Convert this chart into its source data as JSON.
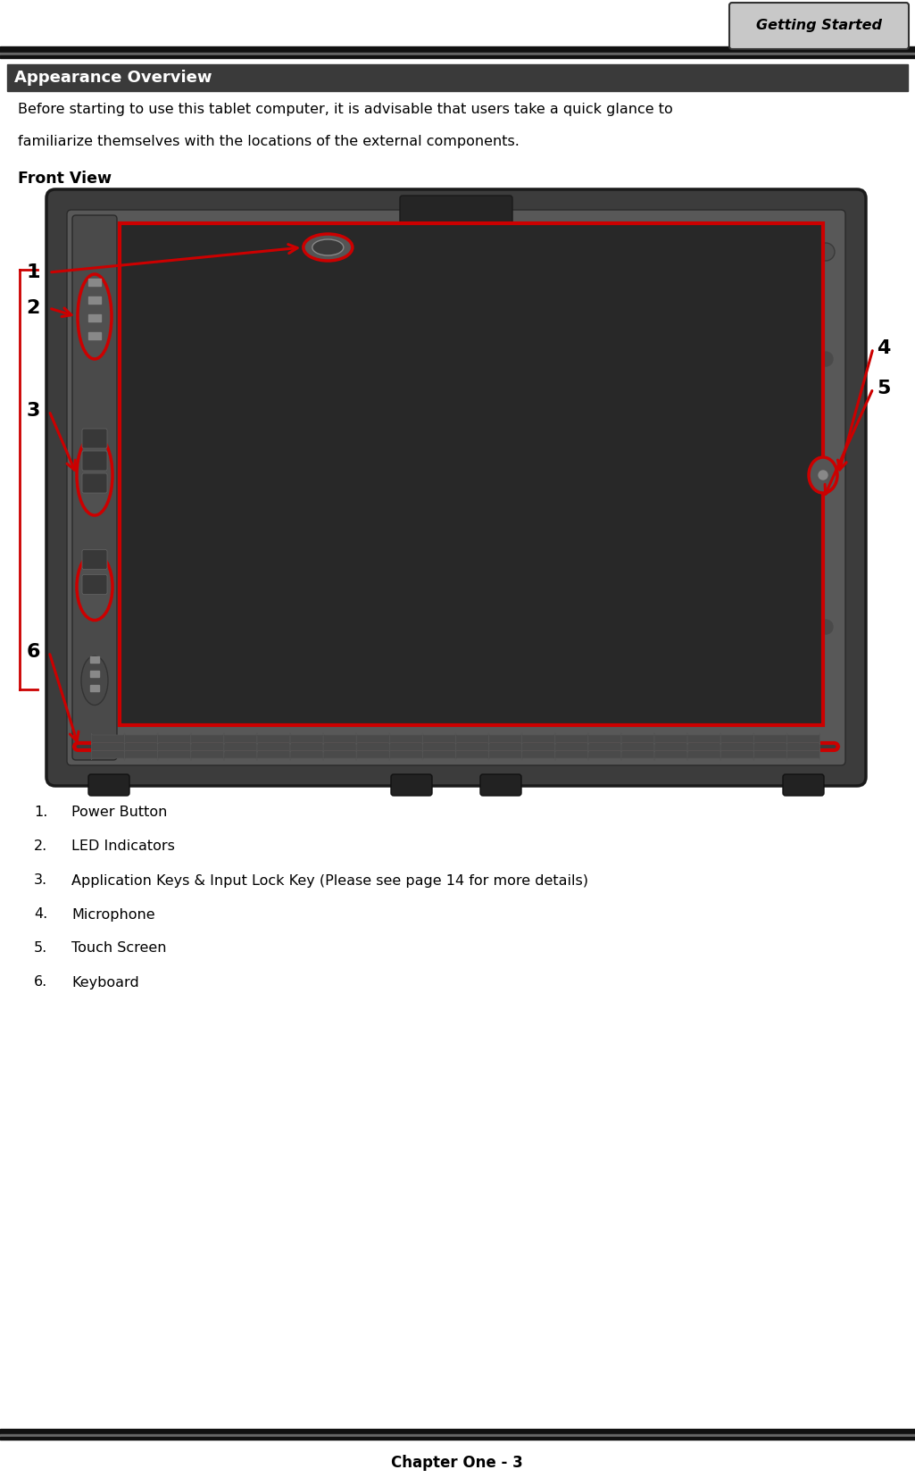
{
  "page_bg": "#ffffff",
  "header_tab_text": "Getting Started",
  "header_tab_bg": "#c8c8c8",
  "header_line1_color": "#1a1a1a",
  "section_title": "Appearance Overview",
  "section_title_bg": "#3a3a3a",
  "section_title_color": "#ffffff",
  "body_text_line1": "Before starting to use this tablet computer, it is advisable that users take a quick glance to",
  "body_text_line2": "familiarize themselves with the locations of the external components.",
  "front_view_label": "Front View",
  "list_items": [
    [
      "1.",
      "Power Button"
    ],
    [
      "2.",
      "LED Indicators"
    ],
    [
      "3.",
      "Application Keys & Input Lock Key (Please see page 14 for more details)"
    ],
    [
      "4.",
      "Microphone"
    ],
    [
      "5.",
      "Touch Screen"
    ],
    [
      "6.",
      "Keyboard"
    ]
  ],
  "footer_text": "Chapter One - 3",
  "callout_color": "#cc0000",
  "device_body_color": "#606060",
  "device_inner_color": "#707070",
  "device_screen_color": "#282828",
  "device_keyboard_color": "#3a3a3a",
  "device_dark_color": "#1a1a1a",
  "device_mid_color": "#505050"
}
